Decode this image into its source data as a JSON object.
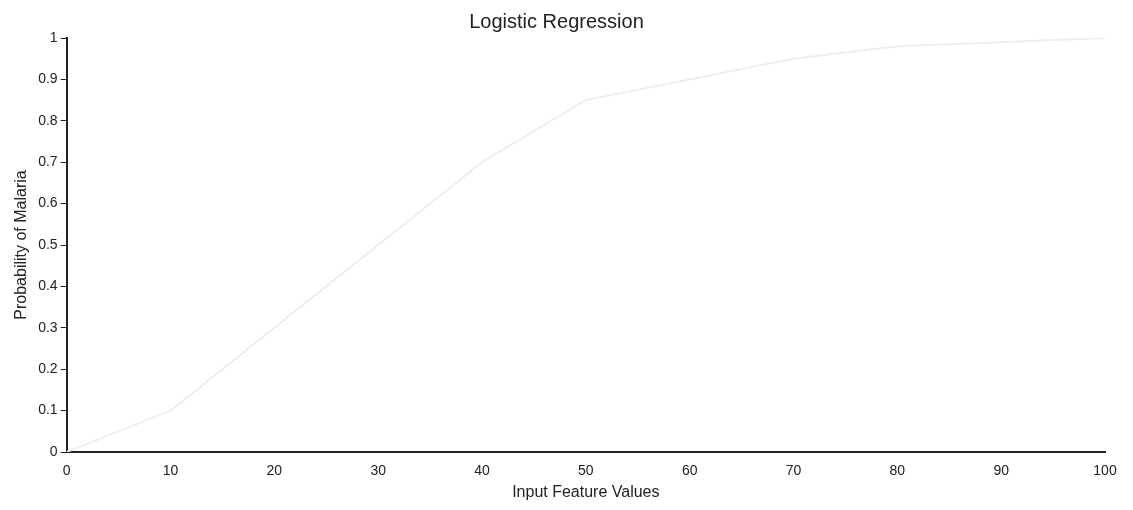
{
  "chart_data": {
    "type": "line",
    "title": "Logistic Regression",
    "xlabel": "Input Feature Values",
    "ylabel": "Probability of Malaria",
    "x": [
      0,
      10,
      20,
      30,
      40,
      50,
      60,
      70,
      80,
      90,
      100
    ],
    "series": [
      {
        "color": "#eeeeee",
        "values": [
          0,
          0.1,
          0.3,
          0.5,
          0.7,
          0.85,
          0.9,
          0.95,
          0.98,
          0.99,
          1
        ]
      }
    ],
    "xlim": [
      0,
      100
    ],
    "xticks": [
      0,
      10,
      20,
      30,
      40,
      50,
      60,
      70,
      80,
      90,
      100
    ],
    "ylim": [
      0,
      1
    ],
    "yticks": [
      0,
      0.1,
      0.2,
      0.3,
      0.4,
      0.5,
      0.6,
      0.7,
      0.8,
      0.9,
      1
    ],
    "grid": false,
    "legend": false,
    "marker": "none",
    "line_style": "solid"
  }
}
